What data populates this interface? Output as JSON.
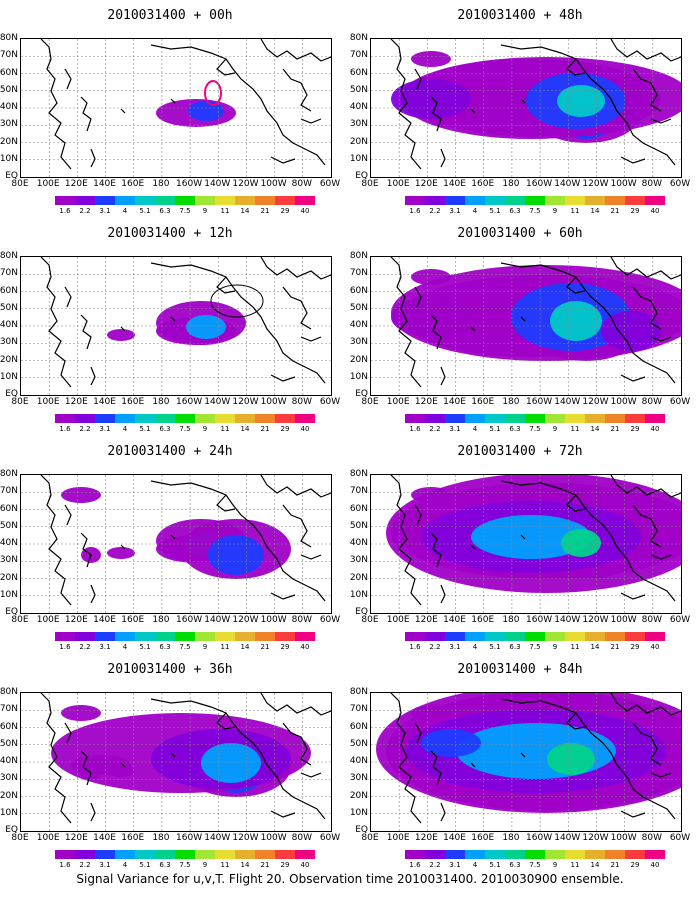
{
  "caption": "Signal Variance for u,v,T. Flight 20. Observation time 2010031400. 2010030900 ensemble.",
  "lat_labels": [
    "80N",
    "70N",
    "60N",
    "50N",
    "40N",
    "30N",
    "20N",
    "10N",
    "EQ"
  ],
  "lon_labels": [
    "80E",
    "100E",
    "120E",
    "140E",
    "160E",
    "180",
    "160W",
    "140W",
    "120W",
    "100W",
    "80W",
    "60W"
  ],
  "colorbar": {
    "labels": [
      "1.6",
      "2.2",
      "3.1",
      "4",
      "5.1",
      "6.3",
      "7.5",
      "9",
      "11",
      "14",
      "21",
      "29",
      "40"
    ],
    "colors": [
      "#a000c8",
      "#8200dc",
      "#1e3cff",
      "#00a0ff",
      "#00c8c8",
      "#00d28c",
      "#00dc00",
      "#a0e632",
      "#e6dc32",
      "#e6af2d",
      "#f08228",
      "#fa3c3c",
      "#f00082"
    ]
  },
  "panels": [
    {
      "title": "2010031400 + 00h",
      "level": 0
    },
    {
      "title": "2010031400 + 48h",
      "level": 4
    },
    {
      "title": "2010031400 + 12h",
      "level": 1
    },
    {
      "title": "2010031400 + 60h",
      "level": 5
    },
    {
      "title": "2010031400 + 24h",
      "level": 2
    },
    {
      "title": "2010031400 + 72h",
      "level": 6
    },
    {
      "title": "2010031400 + 36h",
      "level": 3
    },
    {
      "title": "2010031400 + 84h",
      "level": 7
    }
  ]
}
